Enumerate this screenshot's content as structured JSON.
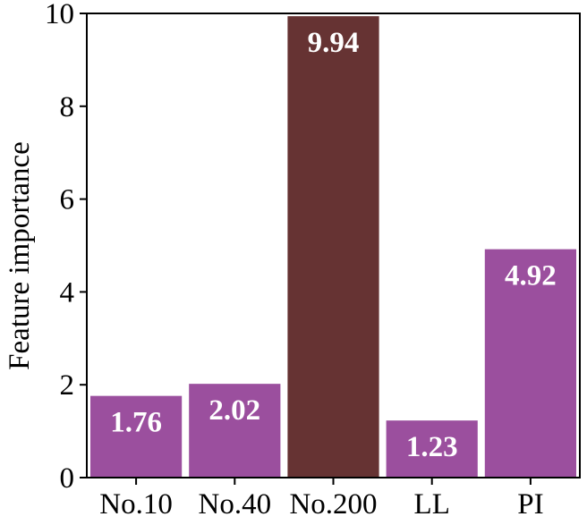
{
  "chart_data": {
    "type": "bar",
    "categories": [
      "No.10",
      "No.40",
      "No.200",
      "LL",
      "PI"
    ],
    "values": [
      1.76,
      2.02,
      9.94,
      1.23,
      4.92
    ],
    "value_labels": [
      "1.76",
      "2.02",
      "9.94",
      "1.23",
      "4.92"
    ],
    "bar_colors": [
      "#9b4f9e",
      "#9b4f9e",
      "#663333",
      "#9b4f9e",
      "#9b4f9e"
    ],
    "title": "",
    "xlabel": "",
    "ylabel": "Feature importance",
    "ylim": [
      0,
      10
    ],
    "yticks": [
      0,
      2,
      4,
      6,
      8,
      10
    ],
    "ytick_labels": [
      "0",
      "2",
      "4",
      "6",
      "8",
      "10"
    ],
    "grid": false,
    "legend": "none"
  }
}
